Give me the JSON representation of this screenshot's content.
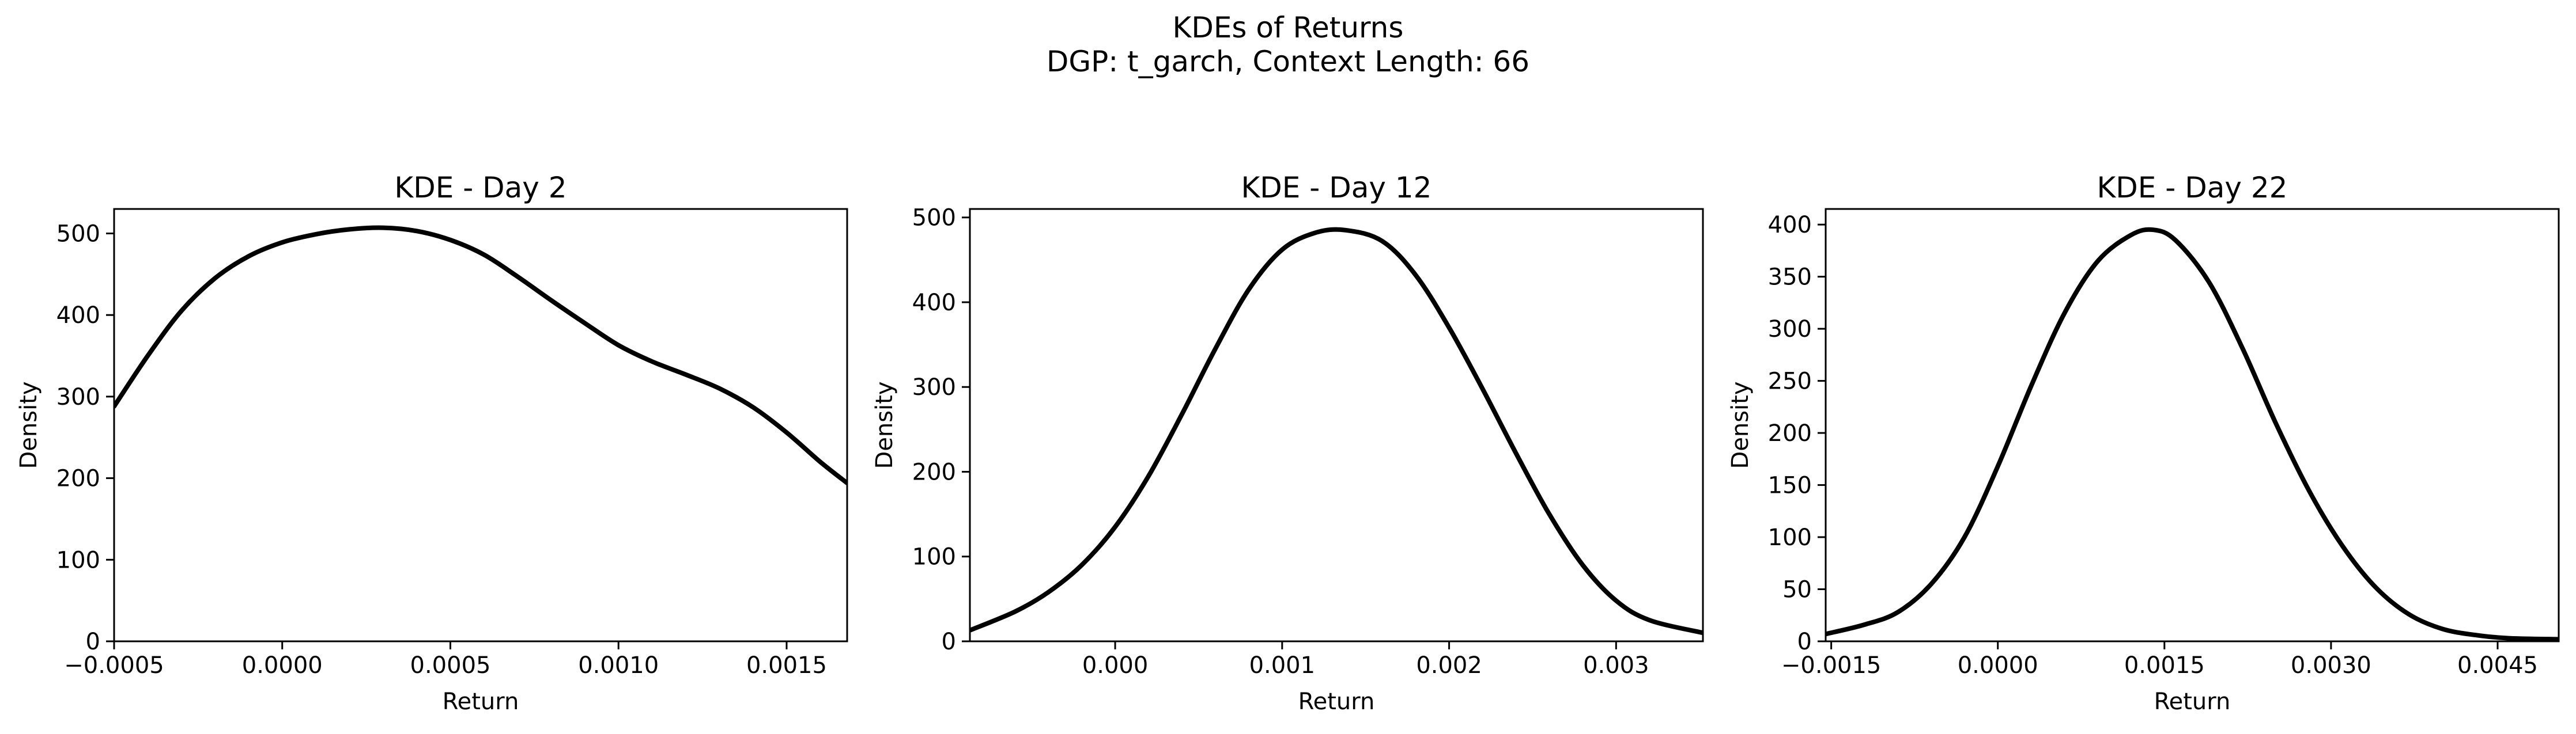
{
  "figure": {
    "title_line1": "KDEs of Returns",
    "title_line2": "DGP: t_garch, Context Length: 66"
  },
  "chart_data": [
    {
      "type": "line",
      "title": "KDE - Day 2",
      "xlabel": "Return",
      "ylabel": "Density",
      "xlim": [
        -0.0005,
        0.00168
      ],
      "ylim": [
        0,
        530
      ],
      "xticks": [
        -0.0005,
        0.0,
        0.0005,
        0.001,
        0.0015
      ],
      "xtick_labels": [
        "−0.0005",
        "0.0000",
        "0.0005",
        "0.0010",
        "0.0015"
      ],
      "yticks": [
        0,
        100,
        200,
        300,
        400,
        500
      ],
      "ytick_labels": [
        "0",
        "100",
        "200",
        "300",
        "400",
        "500"
      ],
      "series": [
        {
          "x": [
            -0.0005,
            -0.0004,
            -0.0003,
            -0.0002,
            -0.0001,
            0.0,
            0.0001,
            0.0002,
            0.0003,
            0.0004,
            0.0005,
            0.0006,
            0.0007,
            0.0008,
            0.0009,
            0.001,
            0.0011,
            0.0012,
            0.0013,
            0.0014,
            0.0015,
            0.0016,
            0.00168
          ],
          "y": [
            288,
            350,
            405,
            445,
            472,
            489,
            499,
            505,
            507,
            503,
            492,
            474,
            447,
            418,
            390,
            363,
            343,
            327,
            310,
            287,
            256,
            220,
            194
          ]
        }
      ]
    },
    {
      "type": "line",
      "title": "KDE - Day 12",
      "xlabel": "Return",
      "ylabel": "Density",
      "xlim": [
        -0.00087,
        0.00352
      ],
      "ylim": [
        0,
        510
      ],
      "xticks": [
        0.0,
        0.001,
        0.002,
        0.003
      ],
      "xtick_labels": [
        "0.000",
        "0.001",
        "0.002",
        "0.003"
      ],
      "yticks": [
        0,
        100,
        200,
        300,
        400,
        500
      ],
      "ytick_labels": [
        "0",
        "100",
        "200",
        "300",
        "400",
        "500"
      ],
      "series": [
        {
          "x": [
            -0.00087,
            -0.0006,
            -0.0004,
            -0.0002,
            0.0,
            0.0002,
            0.0004,
            0.0006,
            0.0008,
            0.001,
            0.0012,
            0.00138,
            0.0016,
            0.0018,
            0.002,
            0.0022,
            0.0024,
            0.0026,
            0.0028,
            0.003,
            0.0032,
            0.00352
          ],
          "y": [
            13,
            35,
            58,
            90,
            135,
            195,
            268,
            345,
            415,
            462,
            482,
            485,
            472,
            432,
            370,
            298,
            222,
            150,
            90,
            48,
            25,
            10
          ]
        }
      ]
    },
    {
      "type": "line",
      "title": "KDE - Day 22",
      "xlabel": "Return",
      "ylabel": "Density",
      "xlim": [
        -0.00155,
        0.00505
      ],
      "ylim": [
        0,
        415
      ],
      "xticks": [
        -0.0015,
        0.0,
        0.0015,
        0.003,
        0.0045
      ],
      "xtick_labels": [
        "−0.0015",
        "0.0000",
        "0.0015",
        "0.0030",
        "0.0045"
      ],
      "yticks": [
        0,
        50,
        100,
        150,
        200,
        250,
        300,
        350,
        400
      ],
      "ytick_labels": [
        "0",
        "50",
        "100",
        "150",
        "200",
        "250",
        "300",
        "350",
        "400"
      ],
      "series": [
        {
          "x": [
            -0.00155,
            -0.0012,
            -0.0009,
            -0.0006,
            -0.0003,
            0.0,
            0.0003,
            0.0006,
            0.0009,
            0.0012,
            0.0014,
            0.0016,
            0.0019,
            0.0022,
            0.0025,
            0.0028,
            0.0031,
            0.0034,
            0.0037,
            0.004,
            0.0043,
            0.0046,
            0.00505
          ],
          "y": [
            7,
            16,
            28,
            55,
            100,
            168,
            245,
            315,
            365,
            390,
            395,
            385,
            345,
            282,
            210,
            145,
            92,
            52,
            26,
            12,
            6,
            3,
            2
          ]
        }
      ]
    }
  ]
}
